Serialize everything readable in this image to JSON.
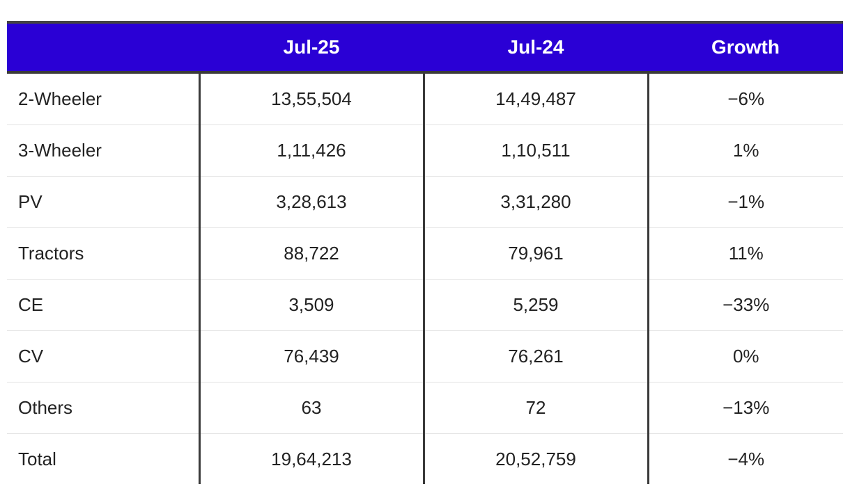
{
  "colors": {
    "header_background": "#2a00d5",
    "header_text": "#ffffff",
    "rule": "#3a3a3a"
  },
  "chart_data": {
    "type": "table",
    "columns": [
      "",
      "Jul-25",
      "Jul-24",
      "Growth"
    ],
    "rows": [
      {
        "label": "2-Wheeler",
        "jul25": "13,55,504",
        "jul24": "14,49,487",
        "growth": "−6%"
      },
      {
        "label": "3-Wheeler",
        "jul25": "1,11,426",
        "jul24": "1,10,511",
        "growth": "1%"
      },
      {
        "label": "PV",
        "jul25": "3,28,613",
        "jul24": "3,31,280",
        "growth": "−1%"
      },
      {
        "label": "Tractors",
        "jul25": "88,722",
        "jul24": "79,961",
        "growth": "11%"
      },
      {
        "label": "CE",
        "jul25": "3,509",
        "jul24": "5,259",
        "growth": "−33%"
      },
      {
        "label": "CV",
        "jul25": "76,439",
        "jul24": "76,261",
        "growth": "0%"
      },
      {
        "label": "Others",
        "jul25": "63",
        "jul24": "72",
        "growth": "−13%"
      },
      {
        "label": "Total",
        "jul25": "19,64,213",
        "jul24": "20,52,759",
        "growth": "−4%"
      }
    ]
  }
}
